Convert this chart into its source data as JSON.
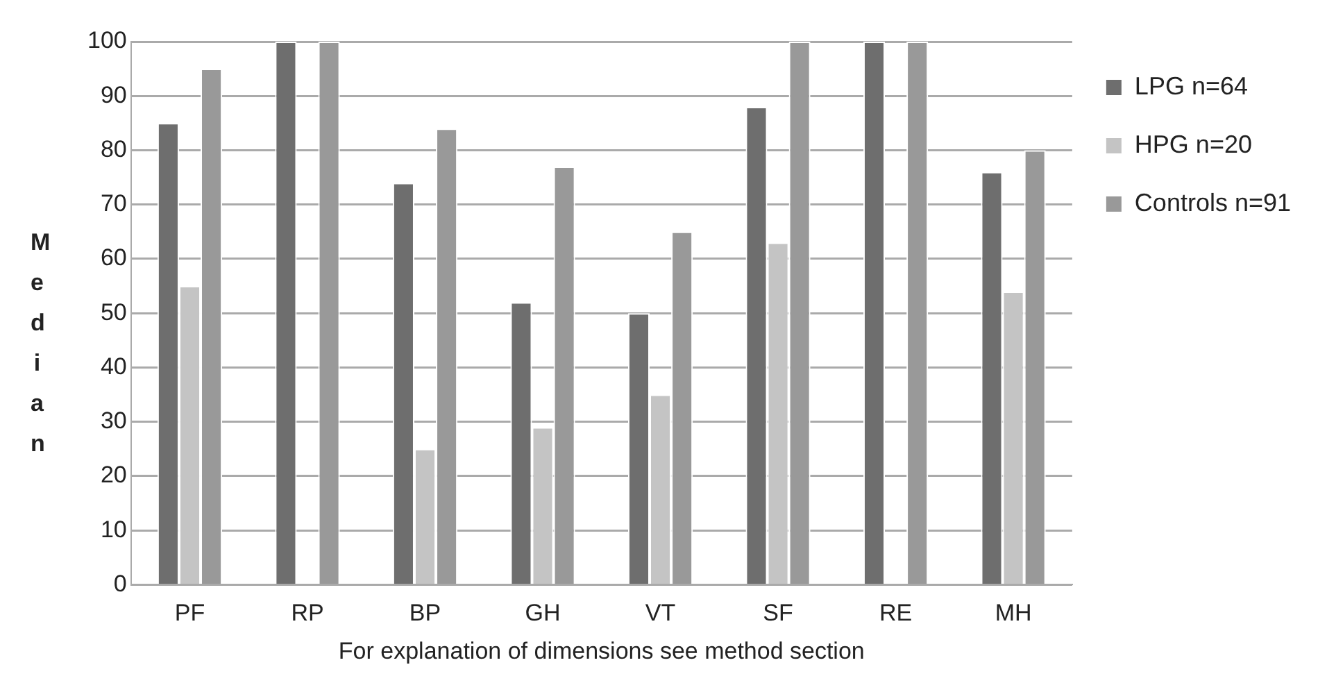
{
  "chart_data": {
    "type": "bar",
    "xlabel": "For explanation of dimensions see method section",
    "ylabel": "Median",
    "categories": [
      "PF",
      "RP",
      "BP",
      "GH",
      "VT",
      "SF",
      "RE",
      "MH"
    ],
    "series": [
      {
        "name": "LPG n=64",
        "color": "#6e6e6e",
        "values": [
          85,
          100,
          74,
          52,
          50,
          88,
          100,
          76
        ]
      },
      {
        "name": "HPG n=20",
        "color": "#c4c4c4",
        "values": [
          55,
          0,
          25,
          29,
          35,
          63,
          0,
          54
        ]
      },
      {
        "name": "Controls n=91",
        "color": "#999999",
        "values": [
          95,
          100,
          84,
          77,
          65,
          100,
          100,
          80
        ]
      }
    ],
    "ylim": [
      0,
      100
    ],
    "yticks": [
      0,
      10,
      20,
      30,
      40,
      50,
      60,
      70,
      80,
      90,
      100
    ],
    "grid": "y",
    "legend": "right"
  }
}
